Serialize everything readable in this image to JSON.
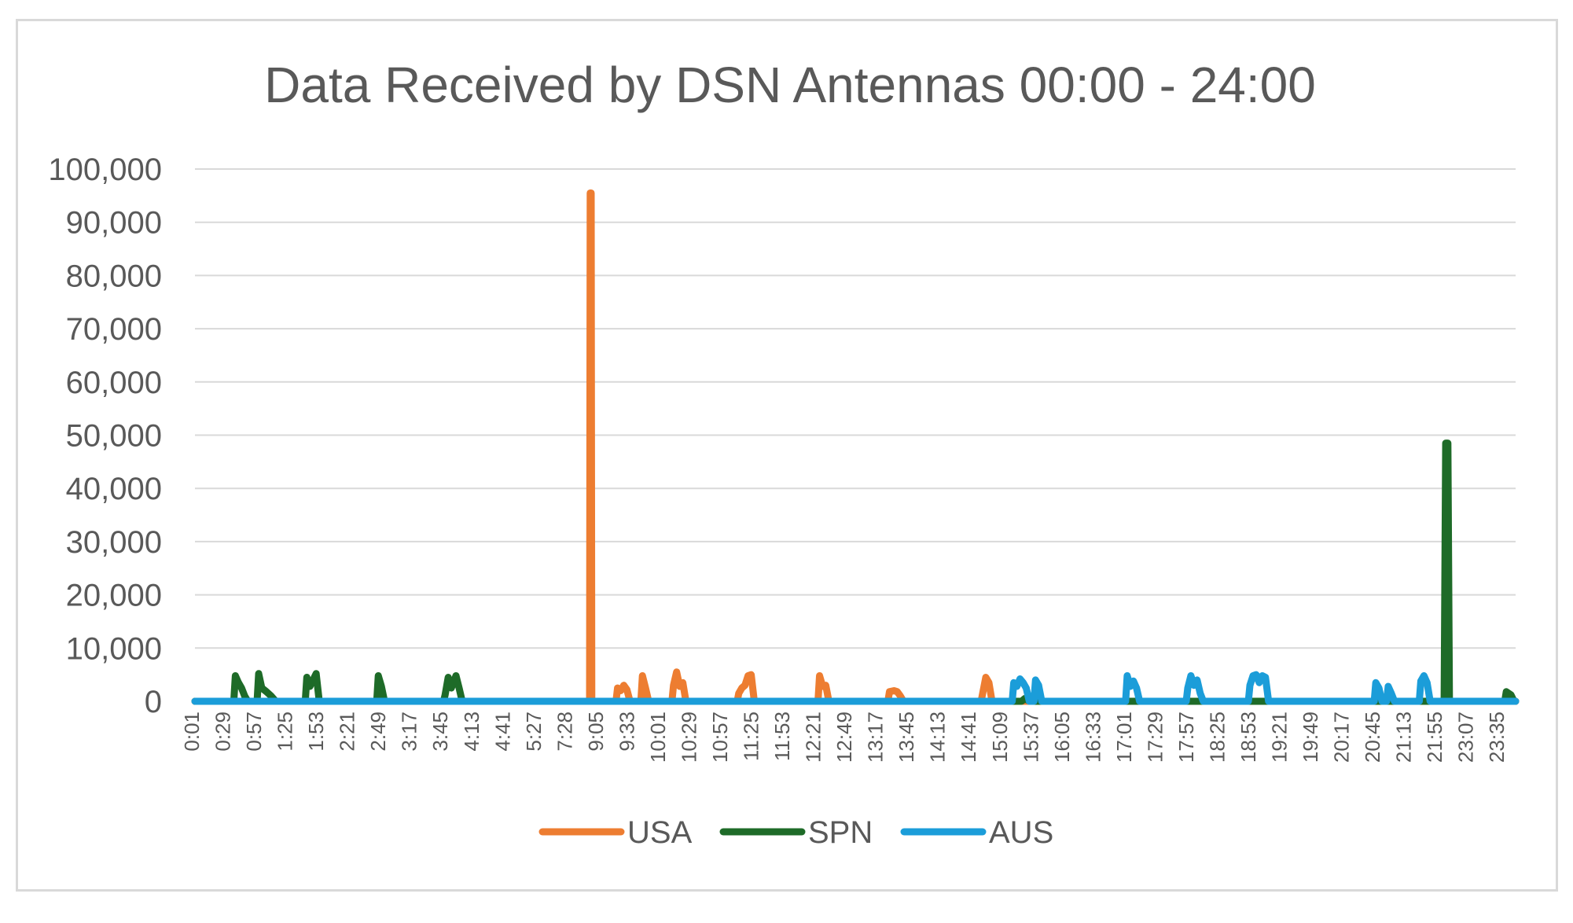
{
  "chart_data": {
    "type": "line",
    "title": "Data Received by DSN Antennas 00:00 - 24:00",
    "xlabel": "",
    "ylabel": "",
    "ylim": [
      0,
      100000
    ],
    "yticks": [
      "0",
      "10,000",
      "20,000",
      "30,000",
      "40,000",
      "50,000",
      "60,000",
      "70,000",
      "80,000",
      "90,000",
      "100,000"
    ],
    "x_tick_labels": [
      "0:01",
      "0:29",
      "0:57",
      "1:25",
      "1:53",
      "2:21",
      "2:49",
      "3:17",
      "3:45",
      "4:13",
      "4:41",
      "5:27",
      "7:28",
      "9:05",
      "9:33",
      "10:01",
      "10:29",
      "10:57",
      "11:25",
      "11:53",
      "12:21",
      "12:49",
      "13:17",
      "13:45",
      "14:13",
      "14:41",
      "15:09",
      "15:37",
      "16:05",
      "16:33",
      "17:01",
      "17:29",
      "17:57",
      "18:25",
      "18:53",
      "19:21",
      "19:49",
      "20:17",
      "20:45",
      "21:13",
      "21:55",
      "23:07",
      "23:35"
    ],
    "grid": true,
    "legend_position": "bottom",
    "series": [
      {
        "name": "USA",
        "color": "#ED7D31",
        "points": [
          [
            12.7,
            0
          ],
          [
            12.72,
            95500
          ],
          [
            12.75,
            95500
          ],
          [
            12.77,
            0
          ],
          [
            13.55,
            0
          ],
          [
            13.6,
            2500
          ],
          [
            13.7,
            2000
          ],
          [
            13.8,
            3000
          ],
          [
            13.9,
            2200
          ],
          [
            14.0,
            0
          ],
          [
            14.35,
            0
          ],
          [
            14.4,
            4800
          ],
          [
            14.5,
            2500
          ],
          [
            14.6,
            0
          ],
          [
            15.35,
            0
          ],
          [
            15.4,
            3000
          ],
          [
            15.5,
            5500
          ],
          [
            15.6,
            2800
          ],
          [
            15.7,
            3500
          ],
          [
            15.8,
            0
          ],
          [
            17.45,
            0
          ],
          [
            17.5,
            1500
          ],
          [
            17.6,
            2500
          ],
          [
            17.7,
            3000
          ],
          [
            17.8,
            4800
          ],
          [
            17.9,
            5000
          ],
          [
            18.0,
            0
          ],
          [
            20.05,
            0
          ],
          [
            20.1,
            4800
          ],
          [
            20.2,
            2800
          ],
          [
            20.3,
            3000
          ],
          [
            20.4,
            0
          ],
          [
            22.3,
            0
          ],
          [
            22.35,
            1800
          ],
          [
            22.5,
            2000
          ],
          [
            22.6,
            1800
          ],
          [
            22.7,
            1000
          ],
          [
            22.8,
            0
          ],
          [
            25.3,
            0
          ],
          [
            25.35,
            1500
          ],
          [
            25.45,
            4500
          ],
          [
            25.55,
            3500
          ],
          [
            25.65,
            0
          ]
        ]
      },
      {
        "name": "SPN",
        "color": "#1E6B28",
        "points": [
          [
            1.25,
            0
          ],
          [
            1.3,
            4800
          ],
          [
            1.4,
            3500
          ],
          [
            1.5,
            2500
          ],
          [
            1.6,
            1000
          ],
          [
            1.7,
            0
          ],
          [
            2.0,
            0
          ],
          [
            2.05,
            5200
          ],
          [
            2.15,
            2500
          ],
          [
            2.3,
            1800
          ],
          [
            2.45,
            1000
          ],
          [
            2.6,
            0
          ],
          [
            3.55,
            0
          ],
          [
            3.6,
            4500
          ],
          [
            3.7,
            2800
          ],
          [
            3.8,
            4000
          ],
          [
            3.9,
            5200
          ],
          [
            4.0,
            0
          ],
          [
            5.85,
            0
          ],
          [
            5.9,
            4800
          ],
          [
            6.0,
            2800
          ],
          [
            6.1,
            0
          ],
          [
            8.0,
            0
          ],
          [
            8.05,
            1200
          ],
          [
            8.15,
            4500
          ],
          [
            8.25,
            2500
          ],
          [
            8.4,
            4800
          ],
          [
            8.5,
            2500
          ],
          [
            8.6,
            0
          ],
          [
            26.6,
            0
          ],
          [
            26.7,
            500
          ],
          [
            26.8,
            200
          ],
          [
            26.9,
            0
          ],
          [
            40.2,
            0
          ],
          [
            40.25,
            48500
          ],
          [
            40.32,
            48500
          ],
          [
            40.37,
            0
          ],
          [
            42.15,
            0
          ],
          [
            42.2,
            1800
          ],
          [
            42.35,
            1200
          ],
          [
            42.45,
            0
          ]
        ]
      },
      {
        "name": "AUS",
        "color": "#1B9DD9",
        "points": [
          [
            0,
            0
          ],
          [
            26.3,
            0
          ],
          [
            26.35,
            3500
          ],
          [
            26.45,
            2800
          ],
          [
            26.55,
            4200
          ],
          [
            26.65,
            3500
          ],
          [
            26.75,
            2500
          ],
          [
            26.85,
            0
          ],
          [
            27.0,
            0
          ],
          [
            27.05,
            4000
          ],
          [
            27.15,
            3000
          ],
          [
            27.25,
            0
          ],
          [
            29.95,
            0
          ],
          [
            30.0,
            4800
          ],
          [
            30.1,
            2800
          ],
          [
            30.2,
            3800
          ],
          [
            30.3,
            2500
          ],
          [
            30.4,
            0
          ],
          [
            31.9,
            0
          ],
          [
            31.95,
            2500
          ],
          [
            32.05,
            4800
          ],
          [
            32.15,
            3000
          ],
          [
            32.25,
            4000
          ],
          [
            32.35,
            1500
          ],
          [
            32.45,
            0
          ],
          [
            33.9,
            0
          ],
          [
            33.95,
            3000
          ],
          [
            34.05,
            4800
          ],
          [
            34.15,
            5000
          ],
          [
            34.25,
            3500
          ],
          [
            34.35,
            4800
          ],
          [
            34.45,
            4500
          ],
          [
            34.55,
            0
          ],
          [
            37.95,
            0
          ],
          [
            38.0,
            3500
          ],
          [
            38.1,
            2500
          ],
          [
            38.2,
            0
          ],
          [
            38.35,
            0
          ],
          [
            38.4,
            2800
          ],
          [
            38.5,
            1500
          ],
          [
            38.6,
            0
          ],
          [
            39.4,
            0
          ],
          [
            39.45,
            3800
          ],
          [
            39.55,
            4800
          ],
          [
            39.65,
            3500
          ],
          [
            39.75,
            0
          ],
          [
            42.5,
            0
          ]
        ]
      }
    ]
  }
}
